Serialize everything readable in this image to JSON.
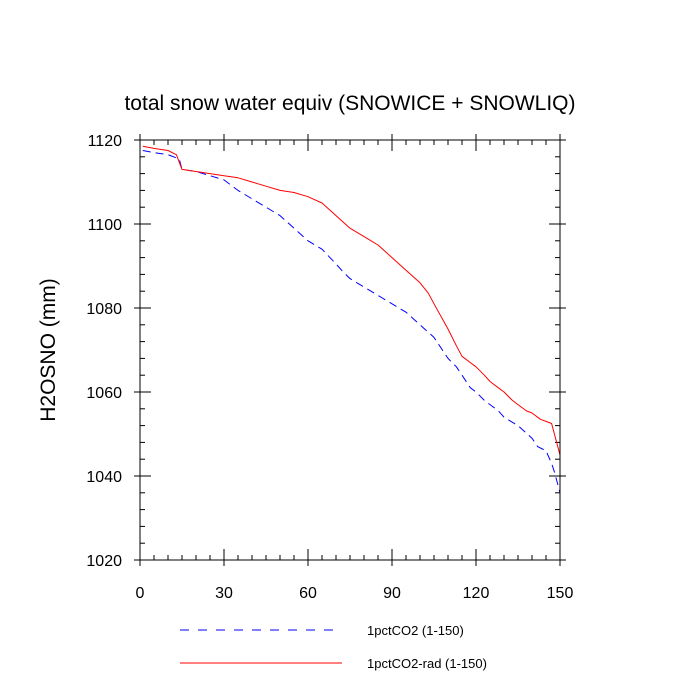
{
  "chart_data": {
    "type": "line",
    "title": "total snow water equiv (SNOWICE + SNOWLIQ)",
    "xlabel": "",
    "ylabel": "H2OSNO  (mm)",
    "xlim": [
      0,
      150
    ],
    "ylim": [
      1020,
      1120
    ],
    "x_ticks": [
      0,
      30,
      60,
      90,
      120,
      150
    ],
    "y_ticks": [
      1020,
      1040,
      1060,
      1080,
      1100,
      1120
    ],
    "x_minor_step": 5,
    "y_minor_step": 4,
    "grid": false,
    "legend_position": "bottom",
    "series": [
      {
        "name": "1pctCO2 (1-150)",
        "color": "#0000ff",
        "dash": "dashed",
        "x": [
          1,
          5,
          10,
          14,
          15,
          20,
          25,
          30,
          35,
          40,
          45,
          50,
          55,
          60,
          65,
          70,
          72,
          75,
          80,
          85,
          90,
          95,
          100,
          105,
          110,
          113,
          115,
          118,
          120,
          123,
          125,
          128,
          130,
          135,
          140,
          142,
          145,
          147,
          148,
          150
        ],
        "y": [
          1117.5,
          1117,
          1116.5,
          1115.5,
          1113,
          1112.5,
          1111.5,
          1110.5,
          1108,
          1106,
          1104,
          1102,
          1099,
          1096,
          1094,
          1090.5,
          1089,
          1087,
          1085,
          1083,
          1081,
          1079,
          1076,
          1073,
          1068,
          1066,
          1064,
          1061,
          1060,
          1058,
          1057,
          1055.5,
          1054,
          1052,
          1049,
          1047,
          1046,
          1043,
          1041,
          1036
        ]
      },
      {
        "name": "1pctCO2-rad (1-150)",
        "color": "#ff0000",
        "dash": "solid",
        "x": [
          1,
          5,
          10,
          13,
          15,
          20,
          25,
          30,
          35,
          40,
          45,
          50,
          55,
          60,
          65,
          70,
          75,
          80,
          85,
          90,
          95,
          100,
          103,
          105,
          110,
          113,
          115,
          118,
          120,
          123,
          125,
          128,
          130,
          133,
          135,
          138,
          140,
          143,
          145,
          147,
          148,
          150
        ],
        "y": [
          1118.5,
          1118,
          1117.5,
          1116.5,
          1113,
          1112.5,
          1112,
          1111.5,
          1111,
          1110,
          1109,
          1108,
          1107.5,
          1106.5,
          1105,
          1102,
          1099,
          1097,
          1095,
          1092,
          1089,
          1086,
          1083.5,
          1081,
          1075,
          1071,
          1068.5,
          1067,
          1066,
          1064,
          1062.5,
          1061,
          1060,
          1058,
          1057,
          1055.5,
          1055,
          1053.5,
          1053,
          1052.5,
          1050,
          1045
        ]
      }
    ]
  }
}
